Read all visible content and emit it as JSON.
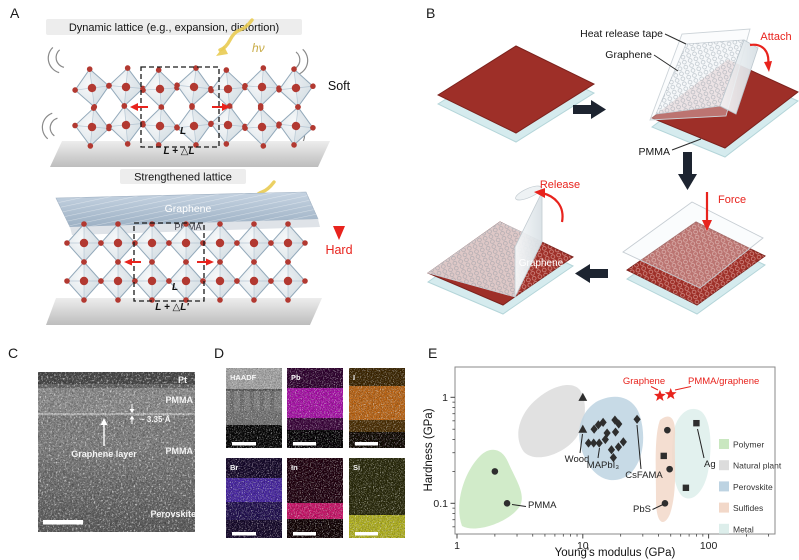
{
  "panels": {
    "A": {
      "label": "A",
      "title_top": "Dynamic lattice (e.g., expansion, distortion)",
      "title_bottom": "Strengthened lattice",
      "hv": "hν",
      "soft": "Soft",
      "hard": "Hard",
      "graphene": "Graphene",
      "pmma": "PMMA",
      "l": "L",
      "l_plus": "L + △L",
      "l_plus_prime": "L + △L'"
    },
    "B": {
      "label": "B",
      "heat_release_tape": "Heat release tape",
      "graphene": "Graphene",
      "pmma": "PMMA",
      "attach": "Attach",
      "force": "Force",
      "release": "Release",
      "graphene_on_substrate": "Graphene"
    },
    "C": {
      "label": "C",
      "pt": "Pt",
      "pmma_top": "PMMA",
      "d_spacing": "~ 3.35 Å",
      "graphene_layer": "Graphene layer",
      "pmma_bottom": "PMMA",
      "perovskite": "Perovskite"
    },
    "D": {
      "label": "D",
      "tiles": [
        {
          "label": "HAADF"
        },
        {
          "label": "Pb"
        },
        {
          "label": "I"
        },
        {
          "label": "Br"
        },
        {
          "label": "In"
        },
        {
          "label": "Si"
        }
      ]
    },
    "E": {
      "label": "E"
    }
  },
  "chart_data": {
    "type": "scatter",
    "title": "",
    "xlabel": "Young's modulus (GPa)",
    "ylabel": "Hardness (GPa)",
    "x_scale": "log",
    "y_scale": "log",
    "xlim": [
      1,
      340
    ],
    "ylim": [
      0.05,
      1.9
    ],
    "x_ticks": [
      1,
      10,
      100
    ],
    "y_ticks": [
      0.1,
      1
    ],
    "grid": false,
    "legend_position": "right-inside",
    "legend": [
      {
        "label": "Polymer",
        "color": "#c9e7c0"
      },
      {
        "label": "Natural plant",
        "color": "#dcdcdc"
      },
      {
        "label": "Perovskite",
        "color": "#bdd3e2"
      },
      {
        "label": "Sulfides",
        "color": "#f2d8c9"
      },
      {
        "label": "Metal",
        "color": "#ddeeeb"
      }
    ],
    "series": [
      {
        "name": "polymer-circles",
        "marker": "circle",
        "color": "#2e2e2e",
        "points": [
          [
            2.0,
            0.2
          ],
          [
            2.5,
            0.1
          ]
        ]
      },
      {
        "name": "plant-triangles",
        "marker": "triangle",
        "color": "#2e2e2e",
        "points": [
          [
            10,
            1.0
          ],
          [
            10,
            0.5
          ]
        ]
      },
      {
        "name": "perovskite-diamonds",
        "marker": "diamond",
        "color": "#2e2e2e",
        "points": [
          [
            12.3,
            0.5
          ],
          [
            13.3,
            0.55
          ],
          [
            14.5,
            0.58
          ],
          [
            18,
            0.61
          ],
          [
            19.3,
            0.56
          ],
          [
            15.6,
            0.46
          ],
          [
            18.2,
            0.47
          ],
          [
            11.1,
            0.37
          ],
          [
            12.2,
            0.37
          ],
          [
            13.5,
            0.37
          ],
          [
            15.1,
            0.4
          ],
          [
            19.2,
            0.34
          ],
          [
            21,
            0.38
          ],
          [
            16.9,
            0.32
          ],
          [
            17.5,
            0.27
          ],
          [
            27,
            0.62
          ]
        ]
      },
      {
        "name": "sulfide-circles",
        "marker": "circle",
        "color": "#2e2e2e",
        "points": [
          [
            47,
            0.49
          ],
          [
            49,
            0.21
          ],
          [
            45,
            0.1
          ]
        ]
      },
      {
        "name": "sulfide-square",
        "marker": "square",
        "color": "#2e2e2e",
        "points": [
          [
            44,
            0.28
          ]
        ]
      },
      {
        "name": "metal-squares",
        "marker": "square",
        "color": "#2e2e2e",
        "points": [
          [
            80,
            0.57
          ],
          [
            66,
            0.14
          ]
        ]
      },
      {
        "name": "this-work-stars",
        "marker": "star",
        "color": "#e8231d",
        "points": [
          [
            41,
            1.03
          ],
          [
            50,
            1.07
          ]
        ]
      }
    ],
    "annotations": [
      {
        "text": "PMMA",
        "point": [
          2.5,
          0.1
        ],
        "color": "#222222"
      },
      {
        "text": "Wood",
        "point": [
          10,
          0.5
        ],
        "color": "#222222"
      },
      {
        "text": "MAPbI₃",
        "point": [
          13.5,
          0.37
        ],
        "color": "#222222"
      },
      {
        "text": "CsFAMA",
        "point": [
          27,
          0.62
        ],
        "color": "#222222"
      },
      {
        "text": "PbS",
        "point": [
          45,
          0.1
        ],
        "color": "#222222"
      },
      {
        "text": "Ag",
        "point": [
          80,
          0.57
        ],
        "color": "#222222"
      },
      {
        "text": "Graphene",
        "point": [
          41,
          1.03
        ],
        "color": "#e8231d"
      },
      {
        "text": "PMMA/graphene",
        "point": [
          50,
          1.07
        ],
        "color": "#e8231d"
      }
    ]
  }
}
